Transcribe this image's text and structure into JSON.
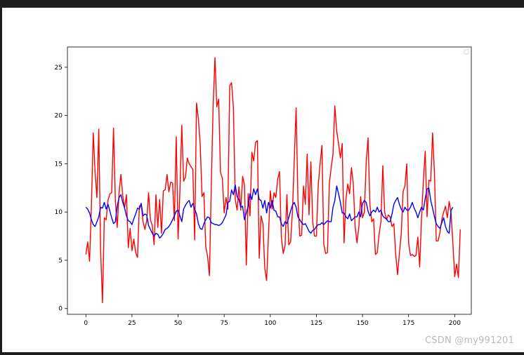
{
  "watermark": "CSDN @my991201",
  "chart_data": {
    "type": "line",
    "title": "",
    "xlabel": "",
    "ylabel": "",
    "xlim": [
      -10,
      209
    ],
    "ylim": [
      -0.6,
      27.1
    ],
    "xticks": [
      0,
      25,
      50,
      75,
      100,
      125,
      150,
      175,
      200
    ],
    "yticks": [
      0,
      5,
      10,
      15,
      20,
      25
    ],
    "grid": false,
    "legend": {
      "placement": "top-right",
      "entries": []
    },
    "series": [
      {
        "color": "#ff0000",
        "values": [
          5.6,
          6.9,
          4.9,
          10.6,
          18.2,
          14.1,
          11.5,
          18.6,
          6.0,
          0.6,
          9.4,
          9.2,
          11.2,
          11.9,
          12.0,
          18.7,
          11.1,
          8.4,
          12.0,
          13.9,
          11.7,
          10.4,
          11.8,
          6.3,
          8.3,
          6.0,
          7.2,
          5.8,
          5.3,
          10.6,
          10.8,
          9.0,
          8.2,
          9.1,
          12.0,
          9.2,
          8.6,
          6.6,
          11.8,
          8.4,
          11.3,
          7.8,
          12.2,
          12.3,
          13.9,
          12.1,
          13.1,
          13.0,
          9.1,
          17.8,
          7.2,
          12.2,
          19.0,
          13.2,
          13.6,
          15.6,
          15.0,
          14.7,
          14.4,
          7.1,
          21.3,
          19.7,
          17.0,
          11.6,
          12.0,
          6.4,
          5.4,
          3.4,
          12.6,
          21.0,
          26.0,
          20.9,
          21.7,
          14.1,
          13.5,
          9.9,
          11.5,
          10.3,
          23.1,
          23.4,
          20.8,
          11.3,
          10.2,
          12.6,
          10.2,
          13.7,
          12.8,
          4.5,
          11.9,
          9.6,
          16.2,
          15.3,
          17.2,
          17.4,
          5.2,
          9.6,
          8.8,
          4.2,
          2.9,
          7.6,
          12.2,
          10.3,
          12.0,
          11.5,
          13.4,
          14.2,
          7.4,
          5.7,
          6.5,
          11.8,
          6.6,
          6.9,
          10.0,
          15.4,
          20.8,
          11.2,
          7.5,
          7.6,
          12.7,
          10.8,
          16.0,
          9.7,
          15.2,
          9.0,
          7.5,
          7.5,
          12.8,
          15.0,
          16.9,
          6.7,
          5.7,
          5.8,
          12.9,
          14.6,
          16.0,
          21.0,
          18.4,
          17.1,
          15.6,
          17.1,
          6.8,
          11.3,
          12.9,
          11.9,
          14.6,
          12.9,
          8.5,
          6.8,
          8.4,
          11.6,
          9.4,
          10.0,
          15.1,
          17.7,
          10.8,
          9.0,
          9.3,
          5.6,
          5.8,
          7.7,
          9.0,
          14.8,
          10.0,
          9.2,
          9.7,
          9.5,
          8.5,
          8.8,
          5.6,
          3.5,
          5.7,
          7.7,
          12.1,
          12.7,
          15.0,
          6.8,
          5.5,
          5.6,
          5.4,
          5.5,
          7.4,
          4.3,
          9.4,
          13.2,
          16.3,
          9.5,
          13.3,
          13.2,
          18.2,
          14.1,
          7.0,
          7.0,
          7.9,
          9.2,
          10.0,
          10.6,
          9.4,
          11.1,
          9.9,
          6.8,
          3.3,
          4.6,
          3.2,
          8.2
        ]
      },
      {
        "color": "#0000ff",
        "values": [
          10.5,
          10.3,
          9.9,
          9.2,
          8.7,
          8.5,
          9.0,
          9.5,
          10.5,
          10.4,
          11.0,
          10.3,
          10.8,
          10.1,
          9.4,
          8.8,
          9.0,
          10.6,
          11.5,
          11.8,
          11.0,
          10.4,
          9.6,
          9.1,
          9.0,
          8.7,
          9.3,
          9.8,
          10.4,
          10.3,
          10.9,
          9.6,
          9.8,
          9.7,
          8.6,
          8.2,
          7.8,
          7.5,
          7.8,
          7.7,
          7.3,
          7.5,
          7.8,
          8.2,
          8.3,
          8.5,
          8.8,
          9.2,
          9.6,
          10.1,
          10.2,
          9.6,
          9.0,
          10.3,
          10.7,
          11.0,
          11.2,
          10.5,
          10.9,
          10.3,
          9.8,
          8.8,
          8.3,
          8.2,
          8.8,
          9.2,
          9.5,
          9.4,
          8.9,
          8.8,
          8.7,
          8.7,
          8.6,
          8.7,
          8.9,
          9.3,
          9.7,
          11.0,
          11.1,
          12.3,
          11.8,
          12.8,
          11.6,
          11.3,
          10.5,
          10.6,
          9.2,
          9.9,
          10.6,
          11.9,
          11.3,
          12.4,
          11.8,
          12.4,
          11.3,
          11.2,
          10.4,
          11.2,
          9.9,
          11.0,
          10.4,
          11.2,
          10.2,
          10.1,
          9.5,
          9.5,
          8.8,
          8.5,
          9.0,
          8.8,
          9.4,
          10.1,
          10.7,
          11.0,
          10.5,
          9.5,
          9.2,
          8.9,
          8.7,
          8.8,
          8.4,
          8.0,
          7.8,
          8.1,
          8.2,
          8.5,
          8.7,
          8.7,
          8.9,
          8.7,
          8.9,
          9.1,
          9.0,
          9.0,
          10.5,
          11.2,
          12.7,
          11.9,
          11.0,
          9.9,
          9.9,
          9.5,
          9.3,
          9.8,
          9.1,
          9.3,
          9.5,
          9.5,
          10.0,
          9.5,
          10.9,
          11.2,
          11.0,
          10.1,
          9.6,
          10.0,
          10.2,
          10.0,
          10.5,
          10.0,
          10.2,
          9.6,
          9.4,
          9.3,
          9.0,
          9.0,
          9.8,
          10.8,
          11.2,
          11.5,
          10.8,
          10.3,
          10.0,
          10.5,
          10.2,
          10.2,
          10.5,
          11.0,
          10.4,
          10.0,
          9.4,
          10.0,
          10.5,
          10.2,
          11.4,
          12.4,
          12.5,
          11.2,
          10.4,
          9.5,
          8.8,
          8.5,
          8.3,
          8.9,
          9.4,
          8.5,
          8.0,
          7.8,
          10.2,
          10.5
        ]
      }
    ]
  }
}
